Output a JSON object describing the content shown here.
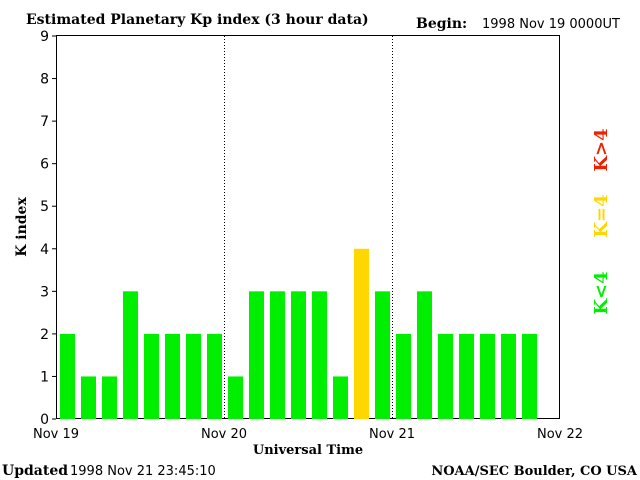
{
  "header": {
    "title": "Estimated Planetary Kp index (3 hour data)",
    "begin_label": "Begin:",
    "begin_value": "1998 Nov 19 0000UT"
  },
  "footer": {
    "updated_label": "Updated",
    "updated_value": "1998 Nov 21 23:45:10",
    "source": "NOAA/SEC Boulder, CO USA"
  },
  "legend": {
    "below": "K<4",
    "equal": "K=4",
    "above": "K>4"
  },
  "colors": {
    "below": "#00ee00",
    "equal": "#ffd700",
    "above": "#ee2200"
  },
  "chart_data": {
    "type": "bar",
    "title": "Estimated Planetary Kp index (3 hour data)",
    "xlabel": "Universal Time",
    "ylabel": "K index",
    "ylim": [
      0,
      9
    ],
    "yticks": [
      0,
      1,
      2,
      3,
      4,
      5,
      6,
      7,
      8,
      9
    ],
    "x_tick_labels": [
      "Nov 19",
      "Nov 20",
      "Nov 21",
      "Nov 22"
    ],
    "interval_hours": 3,
    "values": [
      2,
      1,
      1,
      3,
      2,
      2,
      2,
      2,
      1,
      3,
      3,
      3,
      3,
      1,
      4,
      3,
      2,
      3,
      2,
      2,
      2,
      2,
      2
    ]
  }
}
